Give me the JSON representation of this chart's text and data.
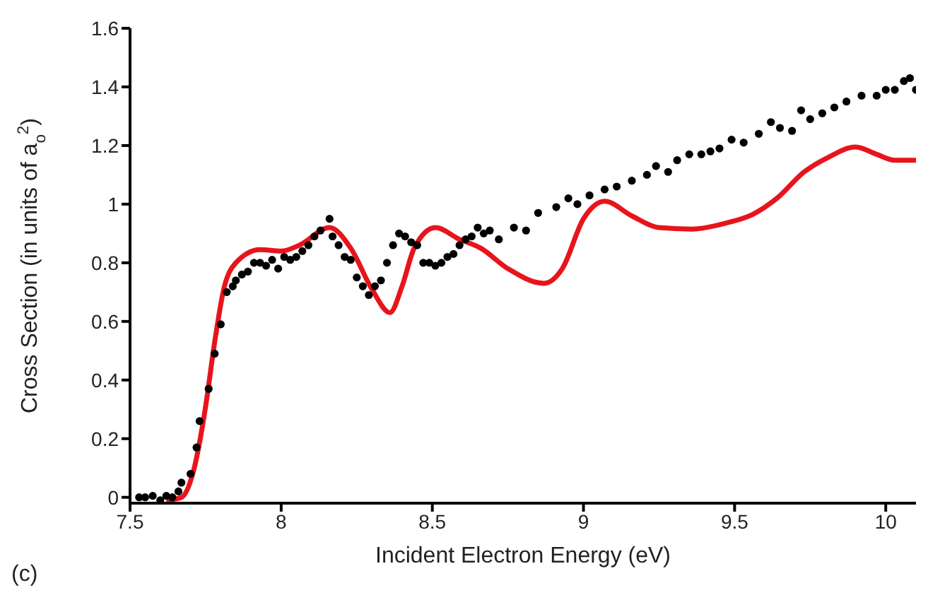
{
  "chart_data": {
    "type": "scatter",
    "xlabel": "Incident Electron Energy (eV)",
    "ylabel": "Cross Section (in units of a$_{o}$$^{2}$)",
    "annotations": [
      "(c)"
    ],
    "xlim": [
      7.5,
      10.1
    ],
    "xticks": [
      7.5,
      8,
      8.5,
      9,
      9.5,
      10
    ],
    "ylim": [
      -0.02,
      1.6
    ],
    "yticks": [
      0,
      0.2,
      0.4,
      0.6,
      0.8,
      1,
      1.2,
      1.4,
      1.6
    ],
    "grid": false,
    "series": [
      {
        "marker": "circle",
        "color": "#000000",
        "x": [
          7.53,
          7.55,
          7.575,
          7.6,
          7.62,
          7.64,
          7.66,
          7.67,
          7.7,
          7.72,
          7.73,
          7.76,
          7.78,
          7.8,
          7.82,
          7.84,
          7.85,
          7.87,
          7.89,
          7.91,
          7.93,
          7.95,
          7.97,
          7.99,
          8.01,
          8.03,
          8.05,
          8.07,
          8.09,
          8.11,
          8.13,
          8.16,
          8.17,
          8.19,
          8.21,
          8.23,
          8.25,
          8.27,
          8.29,
          8.31,
          8.33,
          8.35,
          8.37,
          8.39,
          8.41,
          8.43,
          8.45,
          8.47,
          8.49,
          8.51,
          8.53,
          8.55,
          8.57,
          8.59,
          8.61,
          8.63,
          8.65,
          8.67,
          8.69,
          8.72,
          8.77,
          8.81,
          8.85,
          8.91,
          8.95,
          8.98,
          9.02,
          9.07,
          9.11,
          9.16,
          9.21,
          9.24,
          9.28,
          9.31,
          9.35,
          9.39,
          9.42,
          9.45,
          9.49,
          9.53,
          9.58,
          9.62,
          9.65,
          9.69,
          9.72,
          9.75,
          9.79,
          9.83,
          9.87,
          9.92,
          9.97,
          10,
          10.03,
          10.06,
          10.08,
          10.1
        ],
        "values": [
          0,
          0,
          0.005,
          -0.01,
          0.005,
          0,
          0.02,
          0.05,
          0.08,
          0.17,
          0.26,
          0.37,
          0.49,
          0.59,
          0.7,
          0.72,
          0.74,
          0.76,
          0.77,
          0.8,
          0.8,
          0.79,
          0.81,
          0.78,
          0.82,
          0.81,
          0.82,
          0.84,
          0.86,
          0.89,
          0.91,
          0.95,
          0.89,
          0.86,
          0.82,
          0.81,
          0.75,
          0.72,
          0.69,
          0.72,
          0.74,
          0.8,
          0.86,
          0.9,
          0.89,
          0.87,
          0.86,
          0.8,
          0.8,
          0.79,
          0.8,
          0.82,
          0.83,
          0.86,
          0.88,
          0.89,
          0.92,
          0.9,
          0.91,
          0.88,
          0.92,
          0.91,
          0.97,
          0.99,
          1.02,
          1,
          1.03,
          1.05,
          1.06,
          1.08,
          1.1,
          1.13,
          1.11,
          1.15,
          1.17,
          1.17,
          1.18,
          1.19,
          1.22,
          1.21,
          1.24,
          1.28,
          1.26,
          1.25,
          1.32,
          1.29,
          1.31,
          1.33,
          1.35,
          1.37,
          1.37,
          1.39,
          1.39,
          1.42,
          1.43,
          1.39
        ]
      },
      {
        "type": "line",
        "marker": "none",
        "color": "#e8141c",
        "line_style": "solid",
        "x": [
          7.62,
          7.67,
          7.71,
          7.75,
          7.78,
          7.81,
          7.85,
          7.93,
          8,
          8.06,
          8.16,
          8.23,
          8.3,
          8.36,
          8.4,
          8.44,
          8.51,
          8.59,
          8.66,
          8.75,
          8.87,
          8.93,
          9,
          9.07,
          9.16,
          9.25,
          9.36,
          9.47,
          9.56,
          9.64,
          9.73,
          9.81,
          9.9,
          9.97,
          10.03,
          10.1
        ],
        "values": [
          -0.01,
          0,
          0.09,
          0.31,
          0.53,
          0.71,
          0.8,
          0.845,
          0.84,
          0.86,
          0.92,
          0.85,
          0.71,
          0.63,
          0.72,
          0.85,
          0.92,
          0.88,
          0.85,
          0.78,
          0.73,
          0.78,
          0.95,
          1.01,
          0.96,
          0.92,
          0.915,
          0.935,
          0.965,
          1.02,
          1.11,
          1.16,
          1.195,
          1.17,
          1.15,
          1.15
        ]
      }
    ]
  }
}
